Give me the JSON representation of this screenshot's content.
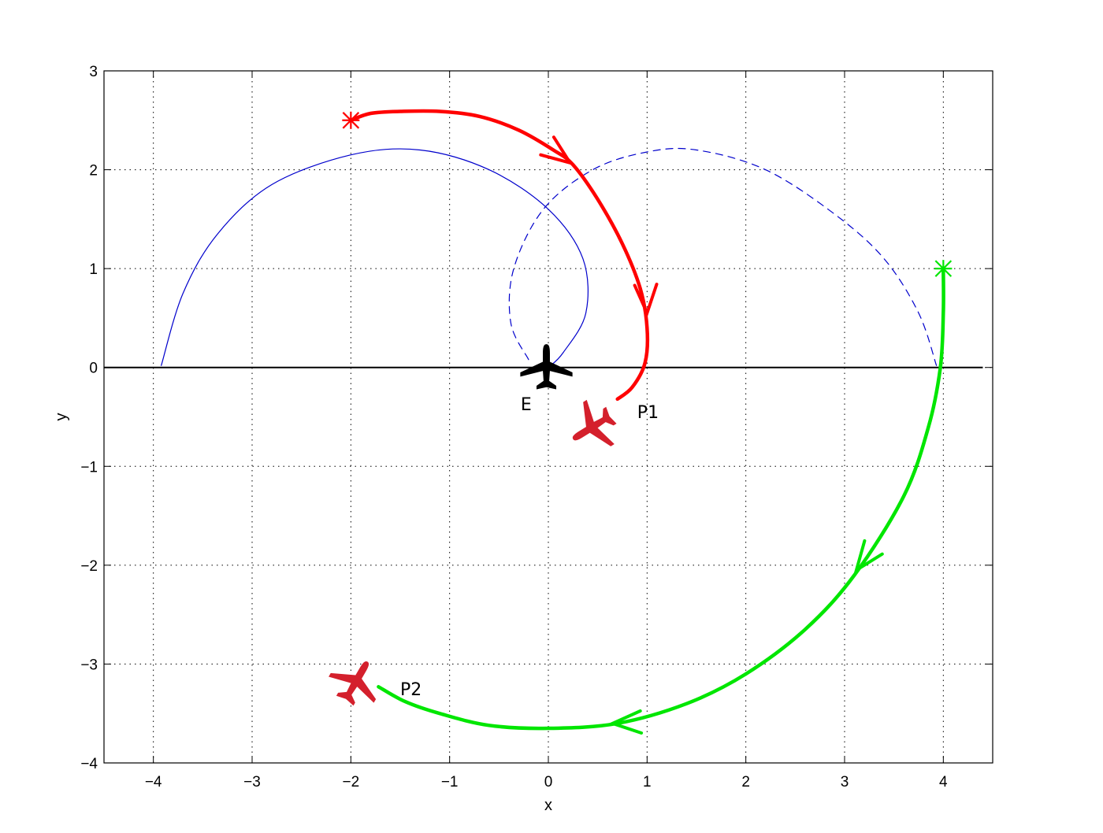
{
  "chart_data": {
    "type": "line",
    "title": "",
    "xlabel": "x",
    "ylabel": "y",
    "xlim": [
      -4.5,
      4.5
    ],
    "ylim": [
      -4,
      3
    ],
    "x_ticks": [
      -4,
      -3,
      -2,
      -1,
      0,
      1,
      2,
      3,
      4
    ],
    "y_ticks": [
      -4,
      -3,
      -2,
      -1,
      0,
      1,
      2,
      3
    ],
    "x_tick_labels": [
      "−4",
      "−3",
      "−2",
      "−1",
      "0",
      "1",
      "2",
      "3",
      "4"
    ],
    "y_tick_labels": [
      "−4",
      "−3",
      "−2",
      "−1",
      "0",
      "1",
      "2",
      "3"
    ],
    "grid": "dotted",
    "colors": {
      "blue": "#0000cc",
      "red": "#ff0000",
      "green": "#00e600",
      "aircraft_red": "#d4202c",
      "aircraft_black": "#000000",
      "axis": "#000000"
    },
    "reference_lines": [
      {
        "style": "solid",
        "color": "#000000",
        "points": [
          [
            -4.5,
            0
          ],
          [
            4.4,
            0
          ]
        ]
      }
    ],
    "series": [
      {
        "style": "thin-solid",
        "color": "#0000cc",
        "points": [
          [
            -3.92,
            0.02
          ],
          [
            -3.7,
            0.75
          ],
          [
            -3.35,
            1.35
          ],
          [
            -2.8,
            1.85
          ],
          [
            -2.0,
            2.15
          ],
          [
            -1.3,
            2.2
          ],
          [
            -0.6,
            2.0
          ],
          [
            0.0,
            1.6
          ],
          [
            0.35,
            1.1
          ],
          [
            0.38,
            0.55
          ],
          [
            0.15,
            0.15
          ],
          [
            0.0,
            0.0
          ]
        ]
      },
      {
        "style": "thin-dashed",
        "color": "#0000cc",
        "points": [
          [
            -0.2,
            0.08
          ],
          [
            -0.38,
            0.45
          ],
          [
            -0.35,
            1.0
          ],
          [
            -0.05,
            1.6
          ],
          [
            0.45,
            2.0
          ],
          [
            1.0,
            2.18
          ],
          [
            1.5,
            2.2
          ],
          [
            2.2,
            2.0
          ],
          [
            2.9,
            1.55
          ],
          [
            3.4,
            1.1
          ],
          [
            3.75,
            0.55
          ],
          [
            3.93,
            0.02
          ]
        ]
      },
      {
        "style": "thick-solid",
        "color": "#ff0000",
        "points": [
          [
            -2.0,
            2.5
          ],
          [
            -1.8,
            2.57
          ],
          [
            -1.5,
            2.59
          ],
          [
            -1.1,
            2.59
          ],
          [
            -0.7,
            2.54
          ],
          [
            -0.3,
            2.4
          ],
          [
            0.05,
            2.2
          ],
          [
            0.25,
            2.05
          ],
          [
            0.5,
            1.7
          ],
          [
            0.75,
            1.25
          ],
          [
            0.93,
            0.8
          ],
          [
            1.0,
            0.4
          ],
          [
            0.98,
            0.05
          ],
          [
            0.85,
            -0.2
          ],
          [
            0.7,
            -0.32
          ]
        ]
      },
      {
        "style": "thick-solid",
        "color": "#00e600",
        "points": [
          [
            4.0,
            1.0
          ],
          [
            4.0,
            0.55
          ],
          [
            3.97,
            0.0
          ],
          [
            3.85,
            -0.6
          ],
          [
            3.6,
            -1.3
          ],
          [
            3.1,
            -2.1
          ],
          [
            2.6,
            -2.65
          ],
          [
            2.0,
            -3.1
          ],
          [
            1.4,
            -3.4
          ],
          [
            0.7,
            -3.6
          ],
          [
            0.0,
            -3.65
          ],
          [
            -0.6,
            -3.62
          ],
          [
            -1.1,
            -3.5
          ],
          [
            -1.45,
            -3.38
          ],
          [
            -1.72,
            -3.23
          ]
        ]
      }
    ],
    "markers": [
      {
        "shape": "star",
        "color": "#ff0000",
        "point": [
          -2.0,
          2.5
        ]
      },
      {
        "shape": "star",
        "color": "#00e600",
        "point": [
          4.0,
          1.0
        ]
      }
    ],
    "arrowheads": [
      {
        "color": "#ff0000",
        "point": [
          0.22,
          2.07
        ],
        "direction": [
          0.75,
          -0.55
        ]
      },
      {
        "color": "#ff0000",
        "point": [
          1.0,
          0.55
        ],
        "direction": [
          0.05,
          -1.0
        ]
      },
      {
        "color": "#00e600",
        "point": [
          3.12,
          -2.05
        ],
        "direction": [
          -0.6,
          -0.8
        ]
      },
      {
        "color": "#00e600",
        "point": [
          0.65,
          -3.6
        ],
        "direction": [
          -1.0,
          -0.05
        ]
      }
    ],
    "aircraft": [
      {
        "id": "E",
        "color": "#000000",
        "point": [
          -0.02,
          0.0
        ],
        "heading_deg": 0,
        "size": 0.5
      },
      {
        "id": "P1",
        "color": "#d4202c",
        "point": [
          0.45,
          -0.6
        ],
        "heading_deg": 238,
        "size": 0.5
      },
      {
        "id": "P2",
        "color": "#d4202c",
        "point": [
          -1.95,
          -3.18
        ],
        "heading_deg": 30,
        "size": 0.5
      }
    ],
    "annotations": [
      {
        "text": "E",
        "point": [
          -0.28,
          -0.37
        ]
      },
      {
        "text": "P1",
        "point": [
          0.9,
          -0.45
        ]
      },
      {
        "text": "P2",
        "point": [
          -1.5,
          -3.25
        ]
      }
    ]
  }
}
